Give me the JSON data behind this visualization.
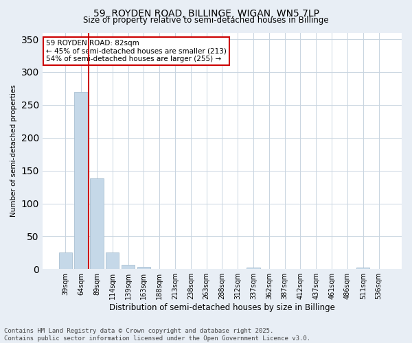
{
  "title1": "59, ROYDEN ROAD, BILLINGE, WIGAN, WN5 7LP",
  "title2": "Size of property relative to semi-detached houses in Billinge",
  "xlabel": "Distribution of semi-detached houses by size in Billinge",
  "ylabel": "Number of semi-detached properties",
  "categories": [
    "39sqm",
    "64sqm",
    "89sqm",
    "114sqm",
    "139sqm",
    "163sqm",
    "188sqm",
    "213sqm",
    "238sqm",
    "263sqm",
    "288sqm",
    "312sqm",
    "337sqm",
    "362sqm",
    "387sqm",
    "412sqm",
    "437sqm",
    "461sqm",
    "486sqm",
    "511sqm",
    "536sqm"
  ],
  "values": [
    25,
    270,
    138,
    25,
    7,
    4,
    0,
    0,
    0,
    0,
    0,
    0,
    2,
    0,
    0,
    0,
    0,
    0,
    0,
    2,
    0
  ],
  "bar_color": "#c5d8e8",
  "bar_edge_color": "#a0b8cc",
  "vline_x": 2.0,
  "vline_color": "#cc0000",
  "annotation_box_color": "#cc0000",
  "annotation_line1": "59 ROYDEN ROAD: 82sqm",
  "annotation_line2": "← 45% of semi-detached houses are smaller (213)",
  "annotation_line3": "54% of semi-detached houses are larger (255) →",
  "annotation_fontsize": 7.5,
  "ylim": [
    0,
    360
  ],
  "yticks": [
    0,
    50,
    100,
    150,
    200,
    250,
    300,
    350
  ],
  "title_fontsize": 10,
  "subtitle_fontsize": 8.5,
  "xlabel_fontsize": 8.5,
  "ylabel_fontsize": 7.5,
  "tick_fontsize": 7,
  "footer1": "Contains HM Land Registry data © Crown copyright and database right 2025.",
  "footer2": "Contains public sector information licensed under the Open Government Licence v3.0.",
  "footer_fontsize": 6.5,
  "bg_color": "#e8eef5",
  "plot_bg_color": "#ffffff",
  "grid_color": "#c8d4e0"
}
